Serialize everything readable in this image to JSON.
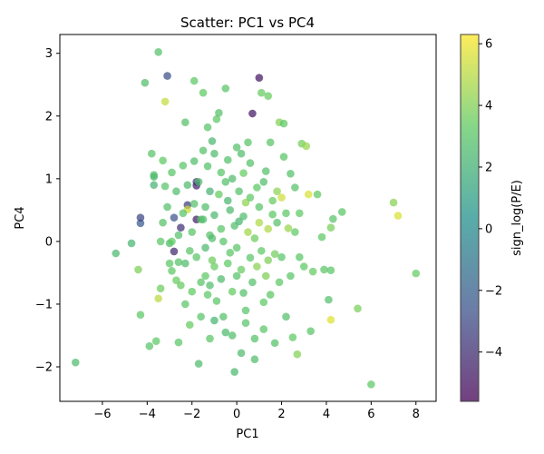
{
  "chart_data": {
    "type": "scatter",
    "title": "Scatter: PC1 vs PC4",
    "xlabel": "PC1",
    "ylabel": "PC4",
    "xlim": [
      -7.9,
      8.9
    ],
    "ylim": [
      -2.55,
      3.3
    ],
    "xticks": [
      -6,
      -4,
      -2,
      0,
      2,
      4,
      6,
      8
    ],
    "yticks": [
      -2,
      -1,
      0,
      1,
      2,
      3
    ],
    "grid": false,
    "colorbar": {
      "label": "sign_log(P/E)",
      "range": [
        -5.6,
        6.3
      ],
      "ticks": [
        -4,
        -2,
        0,
        2,
        4,
        6
      ],
      "colormap": "viridis"
    },
    "points": [
      [
        -7.2,
        -1.93,
        2.6
      ],
      [
        -5.4,
        -0.19,
        2.4
      ],
      [
        -4.7,
        -0.03,
        2.2
      ],
      [
        -4.4,
        -0.45,
        3.9
      ],
      [
        -4.3,
        0.29,
        -2.3
      ],
      [
        -4.3,
        0.38,
        -3.1
      ],
      [
        -4.3,
        -1.17,
        3.2
      ],
      [
        -4.1,
        2.53,
        2.7
      ],
      [
        -3.9,
        -1.67,
        3.0
      ],
      [
        -3.8,
        1.4,
        3.0
      ],
      [
        -3.7,
        1.06,
        2.8
      ],
      [
        -3.7,
        1.03,
        2.5
      ],
      [
        -3.7,
        0.9,
        2.1
      ],
      [
        -3.6,
        -1.59,
        3.2
      ],
      [
        -3.5,
        3.02,
        2.9
      ],
      [
        -3.5,
        -0.91,
        5.0
      ],
      [
        -3.4,
        -0.75,
        3.6
      ],
      [
        -3.4,
        0.0,
        3.1
      ],
      [
        -3.3,
        1.29,
        3.3
      ],
      [
        -3.2,
        2.23,
        5.2
      ],
      [
        -3.2,
        0.88,
        3.0
      ],
      [
        -3.1,
        2.64,
        -2.8
      ],
      [
        -3.1,
        0.55,
        2.8
      ],
      [
        -3.0,
        -0.03,
        2.6
      ],
      [
        -2.9,
        -0.47,
        3.2
      ],
      [
        -2.9,
        0.0,
        3.3
      ],
      [
        -2.8,
        0.38,
        -2.6
      ],
      [
        -2.8,
        -0.16,
        -4.2
      ],
      [
        -2.7,
        -0.62,
        3.5
      ],
      [
        -2.6,
        -1.61,
        3.1
      ],
      [
        -2.6,
        -0.33,
        2.9
      ],
      [
        -2.5,
        0.22,
        -3.8
      ],
      [
        -2.4,
        1.21,
        3.1
      ],
      [
        -2.3,
        1.9,
        2.9
      ],
      [
        -2.3,
        -0.35,
        2.6
      ],
      [
        -2.2,
        0.58,
        -3.5
      ],
      [
        -2.2,
        0.51,
        5.3
      ],
      [
        -2.1,
        -1.33,
        3.4
      ],
      [
        -2.0,
        0.15,
        3.0
      ],
      [
        -1.9,
        2.56,
        3.2
      ],
      [
        -1.9,
        1.28,
        2.7
      ],
      [
        -1.8,
        0.95,
        -3.6
      ],
      [
        -1.8,
        0.89,
        -4.4
      ],
      [
        -1.8,
        0.35,
        -4.6
      ],
      [
        -1.7,
        -1.95,
        2.6
      ],
      [
        -1.6,
        0.35,
        3.1
      ],
      [
        -1.5,
        2.37,
        3.3
      ],
      [
        -1.5,
        1.45,
        2.9
      ],
      [
        -1.4,
        -0.1,
        2.5
      ],
      [
        -1.3,
        1.82,
        3.0
      ],
      [
        -1.2,
        0.8,
        2.1
      ],
      [
        -1.2,
        -0.7,
        2.7
      ],
      [
        -1.1,
        1.6,
        2.4
      ],
      [
        -1.0,
        -1.26,
        2.2
      ],
      [
        -1.0,
        -0.4,
        3.5
      ],
      [
        -0.9,
        1.95,
        3.2
      ],
      [
        -0.8,
        2.05,
        2.8
      ],
      [
        -0.7,
        0.2,
        3.1
      ],
      [
        -0.5,
        2.44,
        3.0
      ],
      [
        -0.5,
        -1.45,
        2.5
      ],
      [
        -0.4,
        0.65,
        2.3
      ],
      [
        -0.3,
        -0.18,
        3.1
      ],
      [
        -0.2,
        1.0,
        2.6
      ],
      [
        -0.1,
        -2.08,
        2.4
      ],
      [
        0.0,
        1.5,
        2.8
      ],
      [
        0.0,
        -0.55,
        2.9
      ],
      [
        0.1,
        0.32,
        2.2
      ],
      [
        0.2,
        -1.78,
        2.6
      ],
      [
        0.3,
        1.09,
        3.4
      ],
      [
        0.3,
        -0.82,
        2.8
      ],
      [
        0.4,
        0.62,
        4.2
      ],
      [
        0.5,
        1.58,
        3.0
      ],
      [
        0.6,
        -0.26,
        3.1
      ],
      [
        0.7,
        2.04,
        -4.8
      ],
      [
        0.8,
        -1.88,
        2.7
      ],
      [
        0.9,
        0.86,
        3.2
      ],
      [
        1.0,
        2.61,
        -4.9
      ],
      [
        1.0,
        0.3,
        4.8
      ],
      [
        1.1,
        2.37,
        3.4
      ],
      [
        1.2,
        -0.97,
        3.3
      ],
      [
        1.3,
        1.12,
        2.8
      ],
      [
        1.4,
        2.32,
        3.5
      ],
      [
        1.4,
        -0.3,
        3.9
      ],
      [
        1.5,
        1.58,
        3.0
      ],
      [
        1.6,
        0.43,
        3.2
      ],
      [
        1.7,
        -1.62,
        2.9
      ],
      [
        1.8,
        0.8,
        4.2
      ],
      [
        1.9,
        1.9,
        4.0
      ],
      [
        2.0,
        -0.25,
        3.1
      ],
      [
        2.0,
        0.7,
        5.4
      ],
      [
        2.1,
        1.88,
        3.2
      ],
      [
        2.2,
        -1.2,
        2.8
      ],
      [
        2.3,
        0.21,
        4.4
      ],
      [
        2.4,
        1.08,
        2.9
      ],
      [
        2.5,
        -1.53,
        3.3
      ],
      [
        2.6,
        0.86,
        2.9
      ],
      [
        2.7,
        -1.8,
        4.0
      ],
      [
        2.8,
        0.45,
        3.3
      ],
      [
        2.9,
        1.56,
        3.7
      ],
      [
        3.0,
        -0.4,
        3.2
      ],
      [
        3.1,
        1.52,
        4.4
      ],
      [
        3.2,
        0.75,
        5.6
      ],
      [
        3.3,
        -1.43,
        3.0
      ],
      [
        3.4,
        -0.48,
        3.4
      ],
      [
        3.6,
        0.75,
        3.3
      ],
      [
        3.8,
        0.07,
        3.2
      ],
      [
        3.9,
        -0.45,
        3.1
      ],
      [
        4.1,
        -0.93,
        2.8
      ],
      [
        4.2,
        0.22,
        3.8
      ],
      [
        4.2,
        -1.25,
        5.7
      ],
      [
        4.2,
        -0.46,
        3.1
      ],
      [
        4.3,
        0.36,
        3.0
      ],
      [
        4.7,
        0.47,
        3.1
      ],
      [
        5.4,
        -1.07,
        3.8
      ],
      [
        6.0,
        -2.28,
        3.2
      ],
      [
        7.0,
        0.62,
        4.1
      ],
      [
        7.2,
        0.41,
        5.6
      ],
      [
        8.0,
        -0.51,
        3.4
      ],
      [
        -1.6,
        -0.65,
        3.0
      ],
      [
        -1.4,
        0.55,
        2.7
      ],
      [
        -1.3,
        -0.85,
        3.2
      ],
      [
        -1.2,
        0.1,
        2.9
      ],
      [
        -1.1,
        -0.3,
        3.6
      ],
      [
        -1.0,
        0.42,
        2.4
      ],
      [
        -0.9,
        -0.95,
        3.1
      ],
      [
        -0.8,
        0.75,
        3.4
      ],
      [
        -0.7,
        -0.6,
        2.6
      ],
      [
        -0.6,
        0.0,
        3.0
      ],
      [
        -0.5,
        0.95,
        2.8
      ],
      [
        -0.4,
        -0.35,
        3.3
      ],
      [
        -0.3,
        0.5,
        2.5
      ],
      [
        -0.2,
        -0.8,
        3.4
      ],
      [
        -0.1,
        0.25,
        2.7
      ],
      [
        0.0,
        -0.1,
        3.1
      ],
      [
        0.1,
        0.8,
        2.9
      ],
      [
        0.2,
        -0.45,
        3.5
      ],
      [
        0.3,
        0.4,
        2.6
      ],
      [
        0.4,
        -1.1,
        3.0
      ],
      [
        0.5,
        0.15,
        4.6
      ],
      [
        0.6,
        0.7,
        3.2
      ],
      [
        0.7,
        -0.65,
        2.8
      ],
      [
        0.8,
        0.05,
        3.6
      ],
      [
        0.9,
        -0.4,
        4.1
      ],
      [
        1.0,
        0.55,
        3.0
      ],
      [
        1.1,
        -0.15,
        3.3
      ],
      [
        1.2,
        0.95,
        2.7
      ],
      [
        1.3,
        -0.55,
        3.9
      ],
      [
        1.4,
        0.2,
        4.8
      ],
      [
        1.5,
        -0.85,
        3.1
      ],
      [
        1.6,
        0.65,
        3.4
      ],
      [
        1.7,
        -0.2,
        3.7
      ],
      [
        1.8,
        0.3,
        2.9
      ],
      [
        1.9,
        -0.65,
        3.2
      ],
      [
        -2.0,
        -0.8,
        3.3
      ],
      [
        -1.9,
        0.6,
        2.8
      ],
      [
        -1.8,
        -0.25,
        3.1
      ],
      [
        -1.7,
        0.95,
        2.5
      ],
      [
        -1.6,
        -1.2,
        3.0
      ],
      [
        -1.5,
        0.35,
        2.7
      ],
      [
        -1.4,
        -0.55,
        3.2
      ],
      [
        -1.3,
        1.2,
        2.9
      ],
      [
        -1.2,
        -1.55,
        3.1
      ],
      [
        -1.1,
        0.05,
        2.6
      ],
      [
        -2.4,
        0.45,
        3.0
      ],
      [
        -2.5,
        -0.7,
        3.4
      ],
      [
        -2.2,
        0.9,
        2.6
      ],
      [
        -2.1,
        -0.15,
        3.1
      ],
      [
        -2.6,
        0.1,
        2.8
      ],
      [
        0.6,
        1.25,
        2.9
      ],
      [
        0.2,
        1.4,
        2.7
      ],
      [
        -0.4,
        1.3,
        2.8
      ],
      [
        -0.7,
        1.1,
        3.0
      ],
      [
        -1.0,
        1.4,
        2.6
      ],
      [
        1.2,
        -1.4,
        3.1
      ],
      [
        0.8,
        -1.55,
        2.9
      ],
      [
        0.4,
        -1.3,
        3.0
      ],
      [
        -0.2,
        -1.5,
        2.7
      ],
      [
        -0.6,
        -1.2,
        2.9
      ],
      [
        2.2,
        0.45,
        3.2
      ],
      [
        2.4,
        -0.55,
        3.0
      ],
      [
        2.6,
        0.15,
        3.3
      ],
      [
        2.8,
        -0.25,
        3.1
      ],
      [
        2.1,
        1.35,
        3.0
      ],
      [
        -3.3,
        0.3,
        2.9
      ],
      [
        -3.0,
        -0.35,
        3.2
      ],
      [
        -2.7,
        0.8,
        2.7
      ],
      [
        -2.9,
        1.1,
        3.0
      ],
      [
        -2.3,
        -1.0,
        3.1
      ]
    ]
  }
}
